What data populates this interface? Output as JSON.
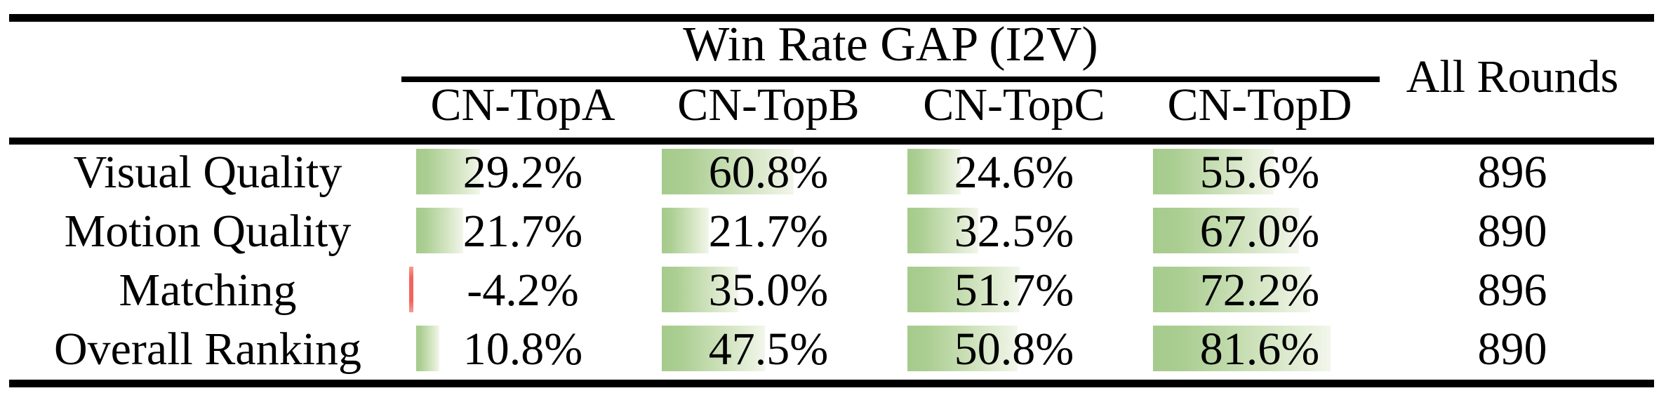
{
  "table": {
    "group_header": "Win Rate GAP (I2V)",
    "all_rounds_header": "All Rounds",
    "columns": [
      "CN-TopA",
      "CN-TopB",
      "CN-TopC",
      "CN-TopD"
    ],
    "rows": [
      {
        "label": "Visual Quality",
        "cells": [
          {
            "text": "29.2%",
            "value": 29.2
          },
          {
            "text": "60.8%",
            "value": 60.8
          },
          {
            "text": "24.6%",
            "value": 24.6
          },
          {
            "text": "55.6%",
            "value": 55.6
          }
        ],
        "all_rounds": "896"
      },
      {
        "label": "Motion Quality",
        "cells": [
          {
            "text": "21.7%",
            "value": 21.7
          },
          {
            "text": "21.7%",
            "value": 21.7
          },
          {
            "text": "32.5%",
            "value": 32.5
          },
          {
            "text": "67.0%",
            "value": 67.0
          }
        ],
        "all_rounds": "890"
      },
      {
        "label": "Matching",
        "cells": [
          {
            "text": "-4.2%",
            "value": -4.2
          },
          {
            "text": "35.0%",
            "value": 35.0
          },
          {
            "text": "51.7%",
            "value": 51.7
          },
          {
            "text": "72.2%",
            "value": 72.2
          }
        ],
        "all_rounds": "896"
      },
      {
        "label": "Overall Ranking",
        "cells": [
          {
            "text": "10.8%",
            "value": 10.8
          },
          {
            "text": "47.5%",
            "value": 47.5
          },
          {
            "text": "50.8%",
            "value": 50.8
          },
          {
            "text": "81.6%",
            "value": 81.6
          }
        ],
        "all_rounds": "890"
      }
    ],
    "colors": {
      "positive_bar": "#a5cb8c",
      "positive_bar_fade": "#f2f6ec",
      "negative_bar": "#f2635e",
      "rule": "#000000",
      "background": "#ffffff",
      "text": "#000000"
    }
  }
}
